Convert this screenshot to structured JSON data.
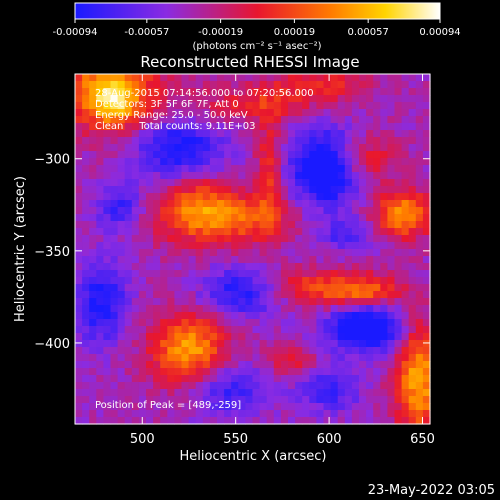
{
  "colorbar": {
    "ticks": [
      "-0.00094",
      "-0.00057",
      "-0.00019",
      "0.00019",
      "0.00057",
      "0.00094"
    ],
    "tick_values": [
      -0.00094,
      -0.00057,
      -0.00019,
      0.00019,
      0.00057,
      0.00094
    ],
    "units_label": "(photons cm⁻² s⁻¹ asec⁻²)",
    "range": [
      -0.00094,
      0.00094
    ],
    "colormap": [
      "#1a1aff",
      "#8a2be2",
      "#e8162e",
      "#ff7a00",
      "#ffd400",
      "#ffffff"
    ]
  },
  "info": {
    "time_range": "28-Aug-2015 07:14:56.000 to 07:20:56.000",
    "detectors": "Detectors: 3F 5F 6F 7F, Att 0",
    "energy": "Energy Range: 25.0 - 50.0 keV",
    "clean": "Clean     Total counts: 9.11E+03",
    "peak": "Position of Peak = [489,-259]"
  },
  "timestamp": "23-May-2022 03:05",
  "chart_data": {
    "type": "heatmap",
    "title": "Reconstructed RHESSI Image",
    "xlabel": "Heliocentric X (arcsec)",
    "ylabel": "Heliocentric Y (arcsec)",
    "xlim": [
      464,
      654
    ],
    "ylim": [
      -444,
      -254
    ],
    "xticks": [
      500,
      550,
      600,
      650
    ],
    "yticks": [
      -300,
      -350,
      -400
    ],
    "xtick_labels": [
      "500",
      "550",
      "600",
      "650"
    ],
    "ytick_labels": [
      "−300",
      "−350",
      "−400"
    ],
    "peak_position": [
      489,
      -259
    ],
    "features": [
      {
        "kind": "positive",
        "x": 482,
        "y": -263,
        "sx": 18,
        "sy": 14,
        "amp": 0.0009
      },
      {
        "kind": "positive",
        "x": 485,
        "y": -272,
        "sx": 8,
        "sy": 8,
        "amp": 0.0004
      },
      {
        "kind": "positive",
        "x": 540,
        "y": -332,
        "sx": 24,
        "sy": 10,
        "amp": 0.00075
      },
      {
        "kind": "positive",
        "x": 530,
        "y": -320,
        "sx": 10,
        "sy": 10,
        "amp": 0.0003
      },
      {
        "kind": "positive",
        "x": 525,
        "y": -404,
        "sx": 14,
        "sy": 14,
        "amp": 0.00085
      },
      {
        "kind": "positive",
        "x": 640,
        "y": -330,
        "sx": 11,
        "sy": 9,
        "amp": 0.0008
      },
      {
        "kind": "positive",
        "x": 648,
        "y": -420,
        "sx": 9,
        "sy": 22,
        "amp": 0.00085
      },
      {
        "kind": "positive",
        "x": 585,
        "y": -370,
        "sx": 22,
        "sy": 7,
        "amp": 0.0005
      },
      {
        "kind": "positive",
        "x": 618,
        "y": -300,
        "sx": 12,
        "sy": 9,
        "amp": 0.00045
      },
      {
        "kind": "positive",
        "x": 560,
        "y": -270,
        "sx": 26,
        "sy": 7,
        "amp": 0.00035
      },
      {
        "kind": "positive",
        "x": 595,
        "y": -260,
        "sx": 18,
        "sy": 6,
        "amp": 0.0004
      },
      {
        "kind": "positive",
        "x": 568,
        "y": -306,
        "sx": 5,
        "sy": 22,
        "amp": 0.00045
      },
      {
        "kind": "positive",
        "x": 618,
        "y": -372,
        "sx": 14,
        "sy": 6,
        "amp": 0.0006
      },
      {
        "kind": "positive",
        "x": 580,
        "y": -410,
        "sx": 10,
        "sy": 6,
        "amp": 0.00035
      },
      {
        "kind": "negative",
        "x": 598,
        "y": -305,
        "sx": 13,
        "sy": 15,
        "amp": -0.0009
      },
      {
        "kind": "negative",
        "x": 620,
        "y": -392,
        "sx": 14,
        "sy": 9,
        "amp": -0.00095
      },
      {
        "kind": "negative",
        "x": 520,
        "y": -294,
        "sx": 16,
        "sy": 11,
        "amp": -0.00065
      },
      {
        "kind": "negative",
        "x": 555,
        "y": -372,
        "sx": 16,
        "sy": 9,
        "amp": -0.0007
      },
      {
        "kind": "negative",
        "x": 478,
        "y": -378,
        "sx": 10,
        "sy": 16,
        "amp": -0.0006
      },
      {
        "kind": "negative",
        "x": 488,
        "y": -326,
        "sx": 9,
        "sy": 9,
        "amp": -0.0005
      },
      {
        "kind": "negative",
        "x": 610,
        "y": -342,
        "sx": 10,
        "sy": 6,
        "amp": -0.0004
      },
      {
        "kind": "negative",
        "x": 545,
        "y": -425,
        "sx": 16,
        "sy": 10,
        "amp": -0.0005
      },
      {
        "kind": "negative",
        "x": 600,
        "y": -425,
        "sx": 12,
        "sy": 9,
        "amp": -0.00045
      }
    ]
  }
}
